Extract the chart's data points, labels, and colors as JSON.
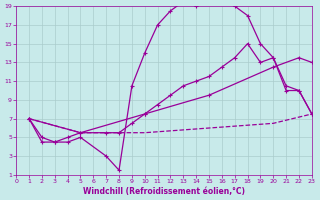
{
  "bg_color": "#c8eaea",
  "grid_color": "#aacccc",
  "line_color": "#990099",
  "xlabel": "Windchill (Refroidissement éolien,°C)",
  "xlim": [
    0,
    23
  ],
  "ylim": [
    1,
    19
  ],
  "xticks": [
    0,
    1,
    2,
    3,
    4,
    5,
    6,
    7,
    8,
    9,
    10,
    11,
    12,
    13,
    14,
    15,
    16,
    17,
    18,
    19,
    20,
    21,
    22,
    23
  ],
  "yticks": [
    1,
    3,
    5,
    7,
    9,
    11,
    13,
    15,
    17,
    19
  ],
  "curve_big": {
    "x": [
      1,
      2,
      3,
      4,
      5,
      7,
      8,
      9,
      10,
      11,
      12,
      13,
      14,
      15,
      16,
      17,
      18,
      19,
      20,
      21,
      22,
      23
    ],
    "y": [
      7,
      5,
      4.5,
      4.5,
      5,
      3,
      1.5,
      10.5,
      14,
      17,
      18.5,
      19.5,
      19,
      19.5,
      19.5,
      19,
      18,
      15,
      13.5,
      10.5,
      10,
      7.5
    ]
  },
  "curve_med": {
    "x": [
      1,
      2,
      3,
      4,
      5,
      7,
      8,
      9,
      10,
      11,
      12,
      13,
      14,
      15,
      16,
      17,
      18,
      19,
      20,
      21,
      22,
      23
    ],
    "y": [
      7,
      4.5,
      4.5,
      5,
      5.5,
      5.5,
      5.5,
      6.5,
      7.5,
      8.5,
      9.5,
      10.5,
      11,
      11.5,
      12.5,
      13.5,
      15,
      13,
      13.5,
      10,
      10,
      7.5
    ]
  },
  "curve_line": {
    "x": [
      1,
      5,
      10,
      15,
      20,
      22,
      23
    ],
    "y": [
      7,
      5.5,
      7.5,
      9.5,
      12.5,
      13.5,
      13
    ]
  },
  "curve_dash": {
    "x": [
      1,
      5,
      10,
      15,
      20,
      23
    ],
    "y": [
      7,
      5.5,
      5.5,
      6.0,
      6.5,
      7.5
    ]
  }
}
